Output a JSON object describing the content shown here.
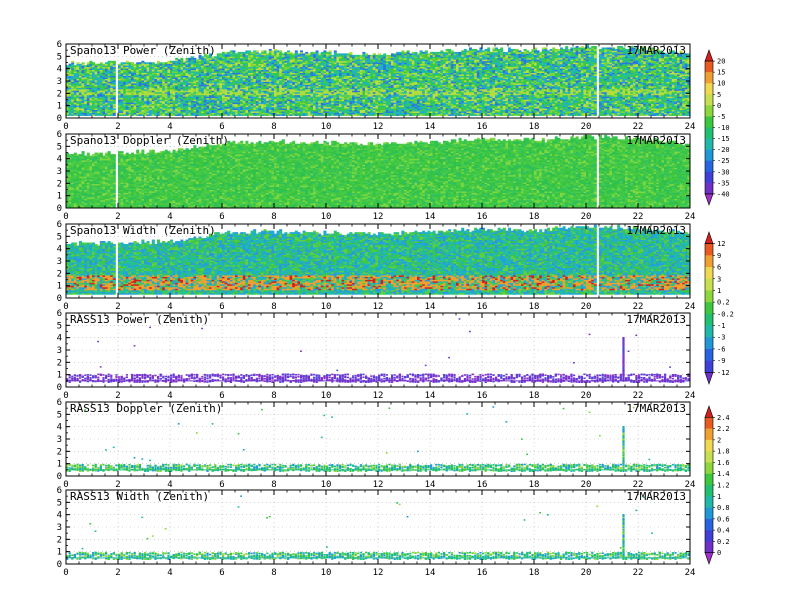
{
  "chart_data": {
    "type": "heatmap",
    "x_axis": {
      "range": [
        0,
        24
      ],
      "ticks": [
        0,
        2,
        4,
        6,
        8,
        10,
        12,
        14,
        16,
        18,
        20,
        22,
        24
      ]
    },
    "y_axis": {
      "range": [
        0,
        6
      ],
      "ticks": [
        0,
        1,
        2,
        3,
        4,
        5,
        6
      ]
    },
    "grid": true,
    "colorbars": [
      {
        "id": "cb1",
        "ticks": [
          "20",
          "15",
          "10",
          "5",
          "0",
          "-5",
          "-10",
          "-15",
          "-20",
          "-25",
          "-30",
          "-35",
          "-40"
        ],
        "colors": [
          "#d22020",
          "#e85a20",
          "#f0a030",
          "#f0d850",
          "#c8e050",
          "#8cd83c",
          "#3cc83c",
          "#20c070",
          "#20b8a8",
          "#2098d8",
          "#2864e0",
          "#4040d8",
          "#7030c8",
          "#a030c8"
        ]
      },
      {
        "id": "cb2",
        "ticks": [
          "12",
          "9",
          "6",
          "3",
          "1",
          "0.2",
          "-0.2",
          "-1",
          "-3",
          "-6",
          "-9",
          "-12"
        ],
        "colors": [
          "#d22020",
          "#e85a20",
          "#f0a030",
          "#f0d850",
          "#c8e050",
          "#8cd83c",
          "#3cc83c",
          "#20c070",
          "#20b8a8",
          "#2098d8",
          "#2864e0",
          "#4040d8",
          "#7030c8"
        ]
      },
      {
        "id": "cb3",
        "ticks": [
          "2.4",
          "2.2",
          "2",
          "1.8",
          "1.6",
          "1.4",
          "1.2",
          "1",
          "0.8",
          "0.6",
          "0.4",
          "0.2",
          "0"
        ],
        "colors": [
          "#d22020",
          "#e85a20",
          "#f0a030",
          "#f0d850",
          "#c8e050",
          "#8cd83c",
          "#3cc83c",
          "#20c070",
          "#20b8a8",
          "#2098d8",
          "#2864e0",
          "#4040d8",
          "#7030c8",
          "#a030c8"
        ]
      }
    ],
    "panels": [
      {
        "title": "Spano13 Power (Zenith)",
        "date": "17MAR2013",
        "style": "dense",
        "palette": [
          "#2878e0",
          "#20a8d8",
          "#20c0a0",
          "#30c858",
          "#40c840",
          "#7cd838",
          "#b8e040"
        ],
        "top_height": [
          4.4,
          4.5,
          4.6,
          5.3,
          5.4,
          5.3,
          5.2,
          5.4,
          5.6,
          5.5,
          5.8,
          5.7,
          5.2
        ],
        "low_edge": 0.2,
        "band": {
          "low": 1.8,
          "high": 2.3,
          "color": "#b0dc40"
        }
      },
      {
        "title": "Spano13 Doppler (Zenith)",
        "date": "17MAR2013",
        "style": "dense",
        "palette": [
          "#40c840",
          "#38c440",
          "#48cc44",
          "#2cc050",
          "#50cc48",
          "#80d840",
          "#30c060"
        ],
        "top_height": [
          4.4,
          4.5,
          4.6,
          5.3,
          5.4,
          5.3,
          5.2,
          5.4,
          5.6,
          5.5,
          5.8,
          5.7,
          5.2
        ],
        "low_edge": 0.05,
        "band": null
      },
      {
        "title": "Spano13 Width (Zenith)",
        "date": "17MAR2013",
        "style": "dense",
        "palette": [
          "#20a8d8",
          "#20b8b0",
          "#30c070",
          "#40c840",
          "#2898e0",
          "#60d040",
          "#20c0a0"
        ],
        "top_height": [
          4.4,
          4.5,
          4.6,
          5.3,
          5.4,
          5.3,
          5.2,
          5.4,
          5.6,
          5.5,
          5.8,
          5.7,
          5.2
        ],
        "low_edge": 0.3,
        "band": {
          "low": 0.6,
          "high": 1.8,
          "color": "#f0a030"
        }
      },
      {
        "title": "RASS13 Power (Zenith)",
        "date": "17MAR2013",
        "style": "sparse",
        "palette": [
          "#7030c8",
          "#8038d0",
          "#6040d8",
          "#9030c8",
          "#5048d8"
        ],
        "band_low": 0.45,
        "band_high": 1.1,
        "spike_x": 21.4,
        "spike_top": 4.0
      },
      {
        "title": "RASS13 Doppler (Zenith)",
        "date": "17MAR2013",
        "style": "sparse",
        "palette": [
          "#20c070",
          "#3cc83c",
          "#20b8a8",
          "#8cd83c",
          "#2098d8"
        ],
        "band_low": 0.45,
        "band_high": 1.0,
        "spike_x": 21.4,
        "spike_top": 4.0
      },
      {
        "title": "RASS13 Width (Zenith)",
        "date": "17MAR2013",
        "style": "sparse",
        "palette": [
          "#20b8a8",
          "#3cc83c",
          "#2098d8",
          "#20c070",
          "#8cd83c"
        ],
        "band_low": 0.45,
        "band_high": 1.0,
        "spike_x": 21.4,
        "spike_top": 4.0
      }
    ]
  }
}
